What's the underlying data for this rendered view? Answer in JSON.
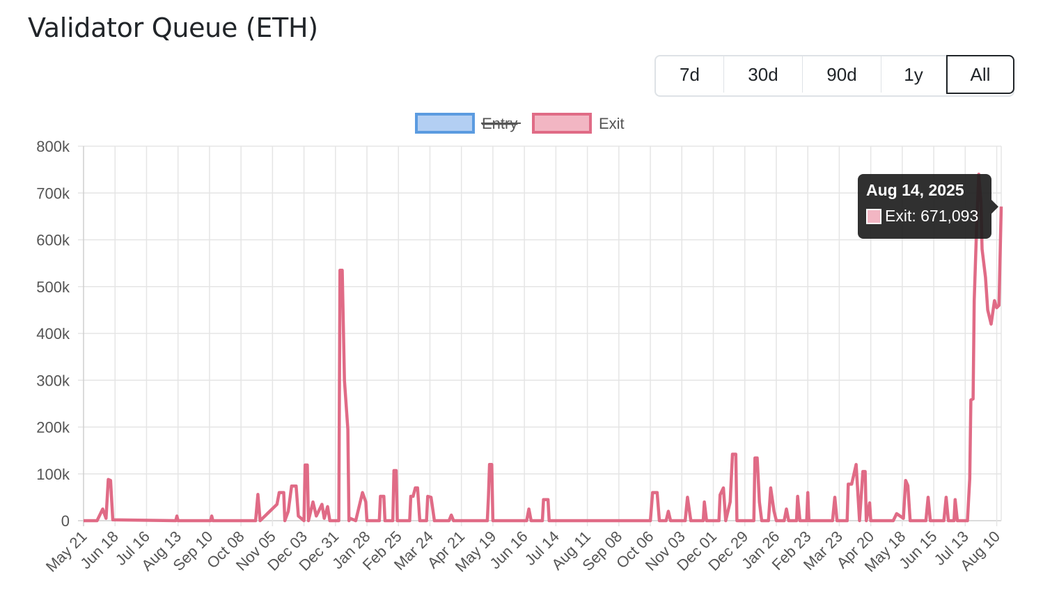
{
  "title": "Validator Queue (ETH)",
  "range_buttons": [
    {
      "label": "7d",
      "active": false
    },
    {
      "label": "30d",
      "active": false
    },
    {
      "label": "90d",
      "active": false
    },
    {
      "label": "1y",
      "active": false
    },
    {
      "label": "All",
      "active": true
    }
  ],
  "tooltip": {
    "title": "Aug 14, 2025",
    "label": "Exit: 671,093"
  },
  "chart_data": {
    "type": "line",
    "title": "",
    "xlabel": "",
    "ylabel": "",
    "ylim": [
      0,
      800000
    ],
    "xlim": [
      "2023-05-21",
      "2025-08-14"
    ],
    "grid": true,
    "legend_position": "top",
    "yticks": [
      "0",
      "100k",
      "200k",
      "300k",
      "400k",
      "500k",
      "600k",
      "700k",
      "800k"
    ],
    "yticks_values": [
      0,
      100000,
      200000,
      300000,
      400000,
      500000,
      600000,
      700000,
      800000
    ],
    "xticks": [
      "May 21",
      "Jun 18",
      "Jul 16",
      "Aug 13",
      "Sep 10",
      "Oct 08",
      "Nov 05",
      "Dec 03",
      "Dec 31",
      "Jan 28",
      "Feb 25",
      "Mar 24",
      "Apr 21",
      "May 19",
      "Jun 16",
      "Jul 14",
      "Aug 11",
      "Sep 08",
      "Oct 06",
      "Nov 03",
      "Dec 01",
      "Dec 29",
      "Jan 26",
      "Feb 23",
      "Mar 23",
      "Apr 20",
      "May 18",
      "Jun 15",
      "Jul 13",
      "Aug 10"
    ],
    "xticks_start": "2023-05-21",
    "xticks_step_days": 28,
    "series": [
      {
        "name": "Entry",
        "hidden": true,
        "color": "#5b9be0",
        "fill": "#b3cff3",
        "points": []
      },
      {
        "name": "Exit",
        "hidden": false,
        "color": "#e06b86",
        "fill": "#f2b6c3",
        "points": [
          [
            "2023-05-21",
            0
          ],
          [
            "2023-06-02",
            0
          ],
          [
            "2023-06-07",
            25000
          ],
          [
            "2023-06-10",
            5000
          ],
          [
            "2023-06-12",
            88000
          ],
          [
            "2023-06-14",
            86000
          ],
          [
            "2023-06-16",
            2000
          ],
          [
            "2023-08-11",
            0
          ],
          [
            "2023-08-12",
            10000
          ],
          [
            "2023-08-13",
            0
          ],
          [
            "2023-09-11",
            0
          ],
          [
            "2023-09-12",
            10000
          ],
          [
            "2023-09-13",
            0
          ],
          [
            "2023-10-21",
            0
          ],
          [
            "2023-10-23",
            56000
          ],
          [
            "2023-10-25",
            0
          ],
          [
            "2023-11-09",
            35000
          ],
          [
            "2023-11-11",
            60000
          ],
          [
            "2023-11-15",
            60000
          ],
          [
            "2023-11-16",
            0
          ],
          [
            "2023-11-19",
            20000
          ],
          [
            "2023-11-22",
            74000
          ],
          [
            "2023-11-26",
            74000
          ],
          [
            "2023-11-28",
            10000
          ],
          [
            "2023-12-03",
            0
          ],
          [
            "2023-12-04",
            119000
          ],
          [
            "2023-12-06",
            119000
          ],
          [
            "2023-12-07",
            0
          ],
          [
            "2023-12-11",
            40000
          ],
          [
            "2023-12-14",
            10000
          ],
          [
            "2023-12-19",
            35000
          ],
          [
            "2023-12-21",
            5000
          ],
          [
            "2023-12-24",
            30000
          ],
          [
            "2023-12-26",
            0
          ],
          [
            "2024-01-03",
            0
          ],
          [
            "2024-01-04",
            535000
          ],
          [
            "2024-01-06",
            535000
          ],
          [
            "2024-01-08",
            300000
          ],
          [
            "2024-01-11",
            195000
          ],
          [
            "2024-01-12",
            0
          ],
          [
            "2024-01-13",
            5000
          ],
          [
            "2024-01-18",
            0
          ],
          [
            "2024-01-24",
            60000
          ],
          [
            "2024-01-27",
            40000
          ],
          [
            "2024-01-28",
            0
          ],
          [
            "2024-02-08",
            0
          ],
          [
            "2024-02-09",
            52000
          ],
          [
            "2024-02-12",
            52000
          ],
          [
            "2024-02-13",
            0
          ],
          [
            "2024-02-20",
            0
          ],
          [
            "2024-02-21",
            107000
          ],
          [
            "2024-02-23",
            107000
          ],
          [
            "2024-02-24",
            0
          ],
          [
            "2024-03-06",
            0
          ],
          [
            "2024-03-07",
            52000
          ],
          [
            "2024-03-09",
            52000
          ],
          [
            "2024-03-11",
            70000
          ],
          [
            "2024-03-13",
            70000
          ],
          [
            "2024-03-15",
            0
          ],
          [
            "2024-03-21",
            0
          ],
          [
            "2024-03-22",
            52000
          ],
          [
            "2024-03-25",
            50000
          ],
          [
            "2024-03-28",
            0
          ],
          [
            "2024-04-10",
            0
          ],
          [
            "2024-04-12",
            12000
          ],
          [
            "2024-04-14",
            0
          ],
          [
            "2024-05-14",
            0
          ],
          [
            "2024-05-15",
            50000
          ],
          [
            "2024-05-16",
            120000
          ],
          [
            "2024-05-18",
            120000
          ],
          [
            "2024-05-19",
            0
          ],
          [
            "2024-06-18",
            0
          ],
          [
            "2024-06-20",
            25000
          ],
          [
            "2024-06-22",
            0
          ],
          [
            "2024-07-02",
            0
          ],
          [
            "2024-07-03",
            45000
          ],
          [
            "2024-07-07",
            45000
          ],
          [
            "2024-07-08",
            0
          ],
          [
            "2024-10-06",
            0
          ],
          [
            "2024-10-08",
            60000
          ],
          [
            "2024-10-12",
            60000
          ],
          [
            "2024-10-14",
            0
          ],
          [
            "2024-10-20",
            0
          ],
          [
            "2024-10-22",
            20000
          ],
          [
            "2024-10-24",
            0
          ],
          [
            "2024-11-06",
            0
          ],
          [
            "2024-11-08",
            50000
          ],
          [
            "2024-11-11",
            0
          ],
          [
            "2024-11-22",
            0
          ],
          [
            "2024-11-23",
            40000
          ],
          [
            "2024-11-25",
            0
          ],
          [
            "2024-12-06",
            0
          ],
          [
            "2024-12-07",
            55000
          ],
          [
            "2024-12-10",
            70000
          ],
          [
            "2024-12-12",
            0
          ],
          [
            "2024-12-16",
            40000
          ],
          [
            "2024-12-18",
            142000
          ],
          [
            "2024-12-21",
            142000
          ],
          [
            "2024-12-22",
            0
          ],
          [
            "2025-01-06",
            0
          ],
          [
            "2025-01-07",
            134000
          ],
          [
            "2025-01-09",
            134000
          ],
          [
            "2025-01-11",
            40000
          ],
          [
            "2025-01-13",
            0
          ],
          [
            "2025-01-19",
            0
          ],
          [
            "2025-01-21",
            70000
          ],
          [
            "2025-01-24",
            20000
          ],
          [
            "2025-01-26",
            0
          ],
          [
            "2025-02-02",
            0
          ],
          [
            "2025-02-04",
            25000
          ],
          [
            "2025-02-06",
            0
          ],
          [
            "2025-02-13",
            0
          ],
          [
            "2025-02-14",
            52000
          ],
          [
            "2025-02-16",
            0
          ],
          [
            "2025-02-22",
            0
          ],
          [
            "2025-02-23",
            60000
          ],
          [
            "2025-02-24",
            0
          ],
          [
            "2025-03-17",
            0
          ],
          [
            "2025-03-19",
            50000
          ],
          [
            "2025-03-21",
            0
          ],
          [
            "2025-03-30",
            0
          ],
          [
            "2025-03-31",
            78000
          ],
          [
            "2025-04-03",
            78000
          ],
          [
            "2025-04-07",
            120000
          ],
          [
            "2025-04-10",
            0
          ],
          [
            "2025-04-13",
            105000
          ],
          [
            "2025-04-15",
            105000
          ],
          [
            "2025-04-16",
            0
          ],
          [
            "2025-04-19",
            38000
          ],
          [
            "2025-04-20",
            0
          ],
          [
            "2025-05-10",
            0
          ],
          [
            "2025-05-13",
            15000
          ],
          [
            "2025-05-19",
            5000
          ],
          [
            "2025-05-21",
            86000
          ],
          [
            "2025-05-23",
            75000
          ],
          [
            "2025-05-25",
            0
          ],
          [
            "2025-06-08",
            0
          ],
          [
            "2025-06-10",
            50000
          ],
          [
            "2025-06-12",
            0
          ],
          [
            "2025-06-24",
            0
          ],
          [
            "2025-06-26",
            50000
          ],
          [
            "2025-06-28",
            0
          ],
          [
            "2025-07-03",
            0
          ],
          [
            "2025-07-04",
            45000
          ],
          [
            "2025-07-06",
            0
          ],
          [
            "2025-07-15",
            0
          ],
          [
            "2025-07-17",
            90000
          ],
          [
            "2025-07-18",
            258000
          ],
          [
            "2025-07-20",
            260000
          ],
          [
            "2025-07-21",
            470000
          ],
          [
            "2025-07-23",
            620000
          ],
          [
            "2025-07-25",
            740000
          ],
          [
            "2025-07-27",
            680000
          ],
          [
            "2025-07-28",
            580000
          ],
          [
            "2025-07-31",
            520000
          ],
          [
            "2025-08-02",
            450000
          ],
          [
            "2025-08-05",
            420000
          ],
          [
            "2025-08-08",
            470000
          ],
          [
            "2025-08-10",
            455000
          ],
          [
            "2025-08-12",
            460000
          ],
          [
            "2025-08-14",
            671093
          ]
        ]
      }
    ]
  }
}
